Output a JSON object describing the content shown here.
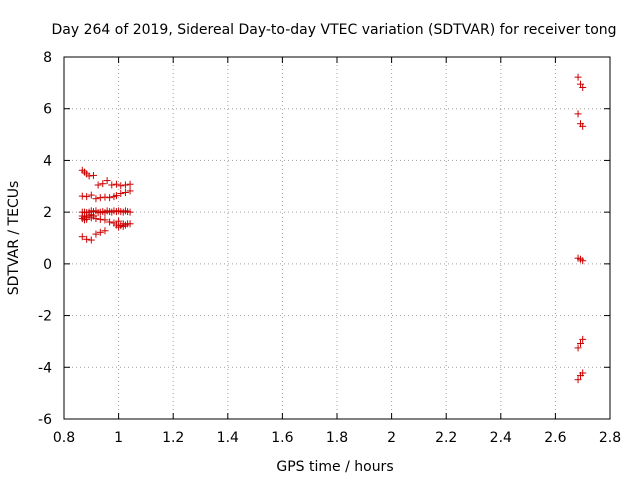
{
  "chart_data": {
    "type": "scatter",
    "title": "Day 264 of 2019, Sidereal Day-to-day VTEC variation (SDTVAR) for receiver tong",
    "xlabel": "GPS time / hours",
    "ylabel": "SDTVAR / TECUs",
    "xlim": [
      0.8,
      2.8
    ],
    "ylim": [
      -6,
      8
    ],
    "xticks": [
      "0.8",
      "1",
      "1.2",
      "1.4",
      "1.6",
      "1.8",
      "2",
      "2.2",
      "2.4",
      "2.6",
      "2.8"
    ],
    "yticks": [
      "-6",
      "-4",
      "-2",
      "0",
      "2",
      "4",
      "6",
      "8"
    ],
    "grid": true,
    "marker": "+",
    "marker_color": "#cc0000",
    "series": [
      {
        "points": [
          [
            0.867,
            3.62
          ],
          [
            0.875,
            3.55
          ],
          [
            0.883,
            3.48
          ],
          [
            0.892,
            3.4
          ],
          [
            0.908,
            3.42
          ],
          [
            0.925,
            3.05
          ],
          [
            0.942,
            3.1
          ],
          [
            0.958,
            3.22
          ],
          [
            0.975,
            3.05
          ],
          [
            0.992,
            3.08
          ],
          [
            1.008,
            3.02
          ],
          [
            1.025,
            3.05
          ],
          [
            1.042,
            3.08
          ],
          [
            1.042,
            2.82
          ],
          [
            1.025,
            2.76
          ],
          [
            1.008,
            2.72
          ],
          [
            0.992,
            2.64
          ],
          [
            0.867,
            2.62
          ],
          [
            0.883,
            2.6
          ],
          [
            0.9,
            2.66
          ],
          [
            0.917,
            2.52
          ],
          [
            0.933,
            2.56
          ],
          [
            0.95,
            2.58
          ],
          [
            0.967,
            2.56
          ],
          [
            0.983,
            2.6
          ],
          [
            0.867,
            2.0
          ],
          [
            0.875,
            2.0
          ],
          [
            0.883,
            1.98
          ],
          [
            0.892,
            2.0
          ],
          [
            0.9,
            2.05
          ],
          [
            0.908,
            2.02
          ],
          [
            0.917,
            2.05
          ],
          [
            0.925,
            1.98
          ],
          [
            0.933,
            2.0
          ],
          [
            0.942,
            2.02
          ],
          [
            0.95,
            1.98
          ],
          [
            0.958,
            2.05
          ],
          [
            0.967,
            2.02
          ],
          [
            0.975,
            2.0
          ],
          [
            0.983,
            2.05
          ],
          [
            0.992,
            2.02
          ],
          [
            1.0,
            2.05
          ],
          [
            1.008,
            2.02
          ],
          [
            1.017,
            2.0
          ],
          [
            1.025,
            2.05
          ],
          [
            1.033,
            2.02
          ],
          [
            1.042,
            2.0
          ],
          [
            0.867,
            1.85
          ],
          [
            0.875,
            1.8
          ],
          [
            0.883,
            1.82
          ],
          [
            0.892,
            1.88
          ],
          [
            0.9,
            1.9
          ],
          [
            0.908,
            1.85
          ],
          [
            0.867,
            1.75
          ],
          [
            0.875,
            1.7
          ],
          [
            0.883,
            1.72
          ],
          [
            0.9,
            1.78
          ],
          [
            0.917,
            1.75
          ],
          [
            0.933,
            1.72
          ],
          [
            0.95,
            1.7
          ],
          [
            0.967,
            1.62
          ],
          [
            0.983,
            1.58
          ],
          [
            1.0,
            1.65
          ],
          [
            1.017,
            1.55
          ],
          [
            1.033,
            1.55
          ],
          [
            0.992,
            1.5
          ],
          [
            1.0,
            1.42
          ],
          [
            1.008,
            1.48
          ],
          [
            1.017,
            1.45
          ],
          [
            1.025,
            1.5
          ],
          [
            1.042,
            1.55
          ],
          [
            0.867,
            1.05
          ],
          [
            0.883,
            0.95
          ],
          [
            0.9,
            0.92
          ],
          [
            0.917,
            1.15
          ],
          [
            0.933,
            1.22
          ],
          [
            0.95,
            1.28
          ],
          [
            2.683,
            7.22
          ],
          [
            2.692,
            6.95
          ],
          [
            2.7,
            6.82
          ],
          [
            2.683,
            5.8
          ],
          [
            2.692,
            5.42
          ],
          [
            2.7,
            5.32
          ],
          [
            2.683,
            0.22
          ],
          [
            2.692,
            0.18
          ],
          [
            2.7,
            0.12
          ],
          [
            2.683,
            -3.25
          ],
          [
            2.692,
            -3.08
          ],
          [
            2.7,
            -2.92
          ],
          [
            2.683,
            -4.48
          ],
          [
            2.692,
            -4.32
          ],
          [
            2.7,
            -4.22
          ]
        ]
      }
    ]
  }
}
